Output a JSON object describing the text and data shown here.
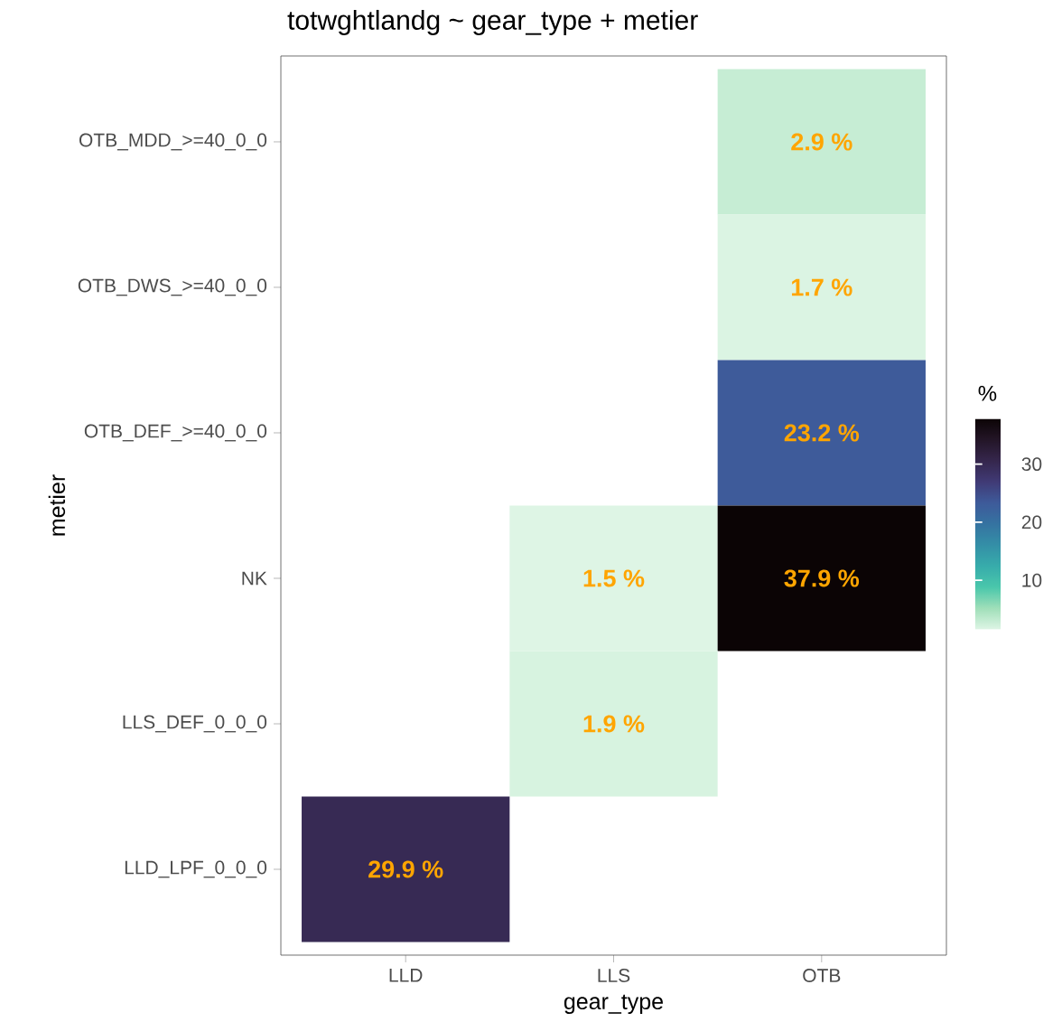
{
  "chart_data": {
    "type": "heatmap",
    "title": "totwghtlandg ~ gear_type + metier",
    "xlabel": "gear_type",
    "ylabel": "metier",
    "clabel": "%",
    "categories": [
      "LLD",
      "LLS",
      "OTB"
    ],
    "y_categories": [
      "OTB_MDD_>=40_0_0",
      "OTB_DWS_>=40_0_0",
      "OTB_DEF_>=40_0_0",
      "NK",
      "LLS_DEF_0_0_0",
      "LLD_LPF_0_0_0"
    ],
    "cells": [
      [
        null,
        null,
        2.9
      ],
      [
        null,
        null,
        1.7
      ],
      [
        null,
        null,
        23.2
      ],
      [
        null,
        1.5,
        37.9
      ],
      [
        null,
        1.9,
        null
      ],
      [
        29.9,
        null,
        null
      ]
    ],
    "cell_labels": [
      [
        null,
        null,
        "2.9 %"
      ],
      [
        null,
        null,
        "1.7 %"
      ],
      [
        null,
        null,
        "23.2 %"
      ],
      [
        null,
        "1.5 %",
        "37.9 %"
      ],
      [
        null,
        "1.9 %",
        null
      ],
      [
        "29.9 %",
        null,
        null
      ]
    ],
    "clim": [
      1.5,
      37.9
    ],
    "cticks": [
      10,
      20,
      30
    ]
  }
}
